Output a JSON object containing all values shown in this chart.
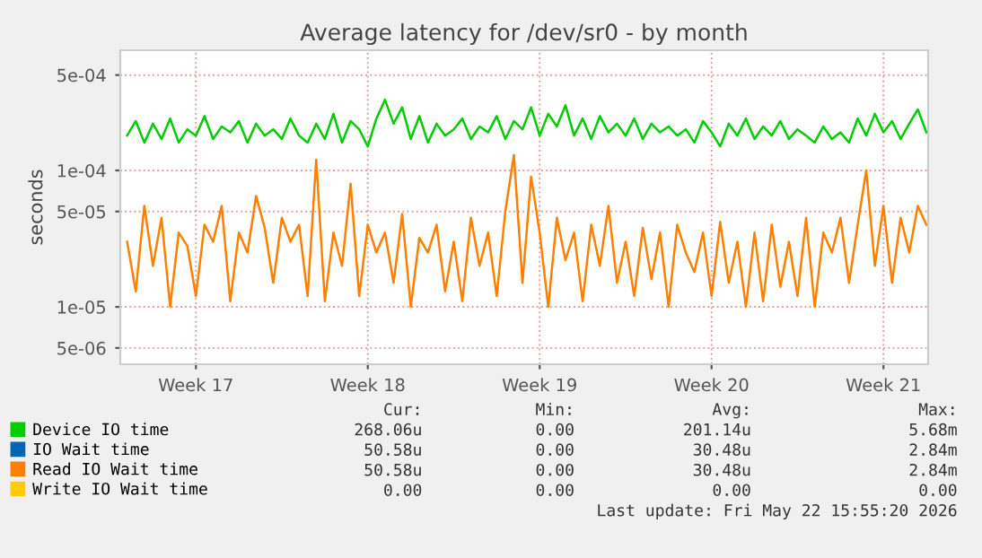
{
  "chart_data": {
    "type": "line",
    "title": "Average latency for /dev/sr0 - by month",
    "ylabel": "seconds",
    "log": "y",
    "categories": [
      null,
      null,
      null,
      null,
      null,
      null,
      null,
      null,
      "Week 17",
      null,
      null,
      null,
      null,
      null,
      null,
      null,
      null,
      null,
      null,
      null,
      null,
      null,
      null,
      null,
      null,
      null,
      null,
      null,
      "Week 18",
      null,
      null,
      null,
      null,
      null,
      null,
      null,
      null,
      null,
      null,
      null,
      null,
      null,
      null,
      null,
      null,
      null,
      null,
      null,
      "Week 19",
      null,
      null,
      null,
      null,
      null,
      null,
      null,
      null,
      null,
      null,
      null,
      null,
      null,
      null,
      null,
      null,
      null,
      null,
      null,
      "Week 20",
      null,
      null,
      null,
      null,
      null,
      null,
      null,
      null,
      null,
      null,
      null,
      null,
      null,
      null,
      null,
      null,
      null,
      null,
      null,
      "Week 21",
      null,
      null,
      null,
      null,
      null
    ],
    "series": [
      {
        "name": "Device IO time",
        "color": "#00cc00",
        "values": [
          0.00018,
          0.00023,
          0.00016,
          0.00022,
          0.00017,
          0.00024,
          0.00016,
          0.0002,
          0.00018,
          0.00025,
          0.00017,
          0.00021,
          0.00019,
          0.00023,
          0.00016,
          0.00022,
          0.00018,
          0.0002,
          0.00017,
          0.00024,
          0.00018,
          0.00016,
          0.00022,
          0.00017,
          0.00026,
          0.00016,
          0.00023,
          0.0002,
          0.00015,
          0.00024,
          0.00033,
          0.00022,
          0.00029,
          0.00017,
          0.00025,
          0.00016,
          0.00022,
          0.00018,
          0.0002,
          0.00024,
          0.00017,
          0.00021,
          0.00019,
          0.00025,
          0.00017,
          0.00023,
          0.0002,
          0.00029,
          0.00018,
          0.00026,
          0.00021,
          0.0003,
          0.00018,
          0.00024,
          0.00017,
          0.00025,
          0.00019,
          0.00022,
          0.00018,
          0.00024,
          0.00017,
          0.00022,
          0.00019,
          0.00021,
          0.00018,
          0.0002,
          0.00016,
          0.00023,
          0.00019,
          0.00015,
          0.00022,
          0.00018,
          0.00024,
          0.00017,
          0.00021,
          0.00018,
          0.00023,
          0.00017,
          0.0002,
          0.00018,
          0.00016,
          0.00021,
          0.00017,
          0.00019,
          0.00016,
          0.00024,
          0.00018,
          0.00026,
          0.00019,
          0.00023,
          0.00017,
          0.00022,
          0.00028,
          0.00019
        ]
      },
      {
        "name": "IO Wait time",
        "color": "#0066b3",
        "values": [
          null,
          null,
          null,
          null,
          null,
          null,
          null,
          null,
          null,
          null,
          null,
          null,
          null,
          null,
          null,
          null,
          null,
          null,
          null,
          null,
          null,
          null,
          null,
          null,
          null,
          null,
          null,
          null,
          null,
          null,
          null,
          null,
          null,
          null,
          null,
          null,
          null,
          null,
          null,
          null,
          null,
          null,
          null,
          null,
          null,
          null,
          null,
          null,
          null,
          null,
          null,
          null,
          null,
          null,
          null,
          null,
          null,
          null,
          null,
          null,
          null,
          null,
          null,
          null,
          null,
          null,
          null,
          null,
          null,
          null,
          null,
          null,
          null,
          null,
          null,
          null,
          null,
          null,
          null,
          null,
          null,
          null,
          null,
          null,
          null,
          null,
          null,
          null,
          null,
          null,
          null,
          null,
          null,
          null
        ]
      },
      {
        "name": "Read IO Wait time",
        "color": "#ff8000",
        "values": [
          3e-05,
          1.3e-05,
          5.5e-05,
          2e-05,
          4.5e-05,
          1e-05,
          3.5e-05,
          2.8e-05,
          1.2e-05,
          4e-05,
          3e-05,
          5.5e-05,
          1.1e-05,
          3.5e-05,
          2.5e-05,
          6.5e-05,
          3.8e-05,
          1.5e-05,
          4.5e-05,
          3e-05,
          4e-05,
          1.2e-05,
          0.00012,
          1.1e-05,
          3.5e-05,
          2e-05,
          8e-05,
          1.2e-05,
          4e-05,
          2.5e-05,
          3.5e-05,
          1.5e-05,
          4.8e-05,
          1e-05,
          3.2e-05,
          2.5e-05,
          4e-05,
          1.3e-05,
          3e-05,
          1.1e-05,
          4.5e-05,
          2e-05,
          3.5e-05,
          1.2e-05,
          5e-05,
          0.00013,
          1.5e-05,
          9e-05,
          3.5e-05,
          1e-05,
          4.5e-05,
          2.2e-05,
          3.5e-05,
          1.1e-05,
          4e-05,
          2e-05,
          5.5e-05,
          1.5e-05,
          3e-05,
          1.2e-05,
          3.8e-05,
          1.6e-05,
          3.5e-05,
          1e-05,
          4e-05,
          2.5e-05,
          1.8e-05,
          3.5e-05,
          1.2e-05,
          4.2e-05,
          1.5e-05,
          3e-05,
          1e-05,
          3.5e-05,
          1.1e-05,
          4e-05,
          1.4e-05,
          3e-05,
          1.2e-05,
          4.5e-05,
          1e-05,
          3.5e-05,
          2.5e-05,
          4.5e-05,
          1.5e-05,
          4e-05,
          0.0001,
          2e-05,
          5.5e-05,
          1.5e-05,
          4.5e-05,
          2.5e-05,
          5.5e-05,
          4e-05
        ]
      },
      {
        "name": "Write IO Wait time",
        "color": "#ffcc00",
        "values": [
          null,
          null,
          null,
          null,
          null,
          null,
          null,
          null,
          null,
          null,
          null,
          null,
          null,
          null,
          null,
          null,
          null,
          null,
          null,
          null,
          null,
          null,
          null,
          null,
          null,
          null,
          null,
          null,
          null,
          null,
          null,
          null,
          null,
          null,
          null,
          null,
          null,
          null,
          null,
          null,
          null,
          null,
          null,
          null,
          null,
          null,
          null,
          null,
          null,
          null,
          null,
          null,
          null,
          null,
          null,
          null,
          null,
          null,
          null,
          null,
          null,
          null,
          null,
          null,
          null,
          null,
          null,
          null,
          null,
          null,
          null,
          null,
          null,
          null,
          null,
          null,
          null,
          null,
          null,
          null,
          null,
          null,
          null,
          null,
          null,
          null,
          null,
          null,
          null,
          null,
          null,
          null,
          null,
          null
        ]
      }
    ],
    "ylim": [
      3.8e-06,
      0.00076
    ],
    "yticks": [
      {
        "value": 5e-06,
        "label": "5e-06"
      },
      {
        "value": 1e-05,
        "label": "1e-05"
      },
      {
        "value": 5e-05,
        "label": "5e-05"
      },
      {
        "value": 0.0001,
        "label": "1e-04"
      },
      {
        "value": 0.0005,
        "label": "5e-04"
      }
    ],
    "grid": true,
    "legend": "bottom",
    "annotations": [
      "Cur:",
      "Min:",
      "Avg:",
      "Max:",
      "268.06u",
      "0.00",
      "201.14u",
      "5.68m",
      "50.58u",
      "0.00",
      "30.48u",
      "2.84m",
      "50.58u",
      "0.00",
      "30.48u",
      "2.84m",
      "0.00",
      "0.00",
      "0.00",
      "0.00",
      "Last update: Fri May 22 15:55:20 2026"
    ]
  }
}
